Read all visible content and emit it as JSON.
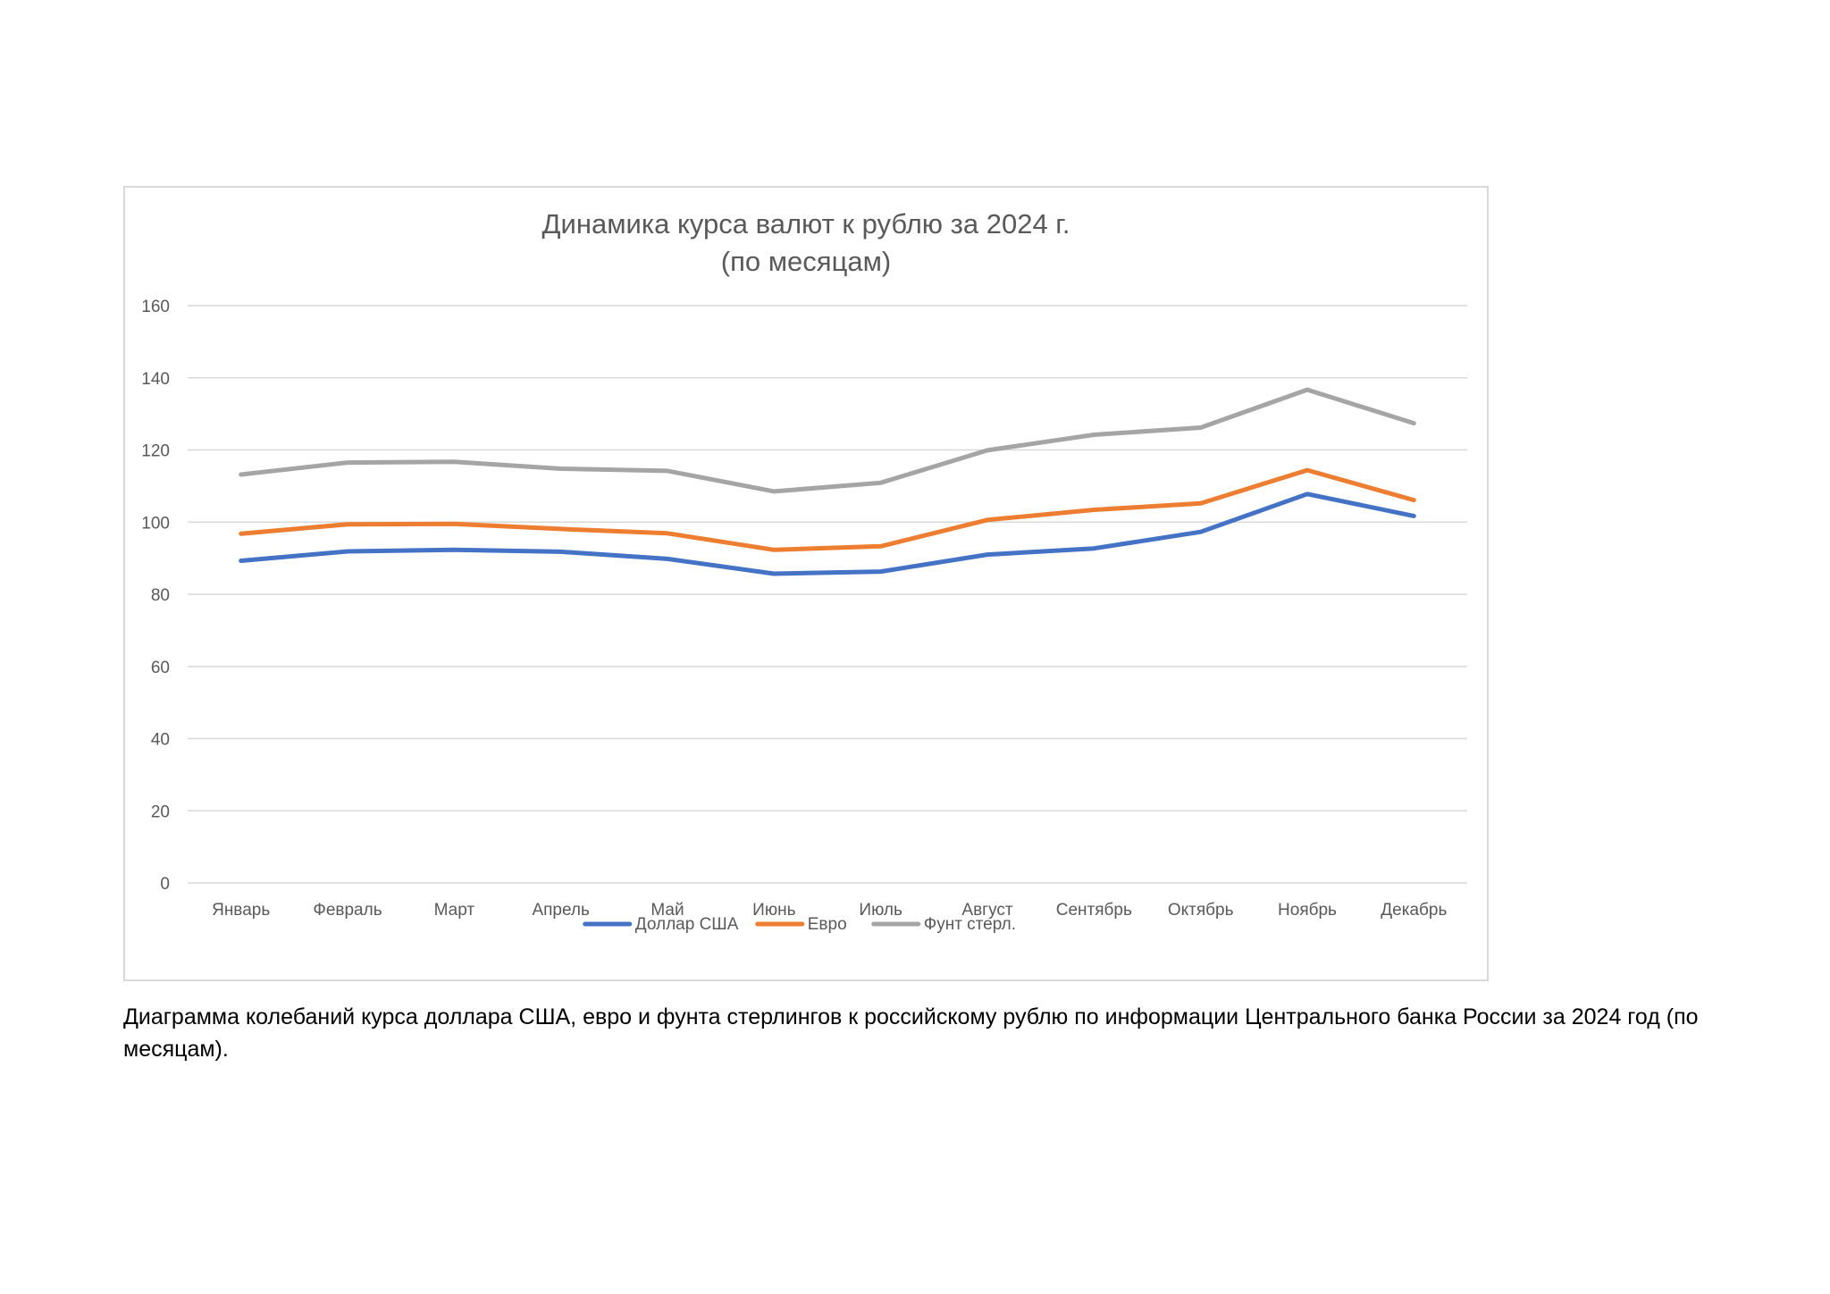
{
  "chart_data": {
    "type": "line",
    "title_lines": [
      "Динамика курса валют к рублю за 2024 г.",
      "(по месяцам)"
    ],
    "categories": [
      "Январь",
      "Февраль",
      "Март",
      "Апрель",
      "Май",
      "Июнь",
      "Июль",
      "Август",
      "Сентябрь",
      "Октябрь",
      "Ноябрь",
      "Декабрь"
    ],
    "ylim": [
      0,
      160
    ],
    "yticks": [
      "0",
      "20",
      "40",
      "60",
      "80",
      "100",
      "120",
      "140",
      "160"
    ],
    "grid": true,
    "legend_position": "bottom",
    "series": [
      {
        "name": "Доллар США",
        "color": "#4472c4",
        "values": [
          89.3,
          91.9,
          92.3,
          91.8,
          89.8,
          85.7,
          86.3,
          91.0,
          92.7,
          97.3,
          107.8,
          101.7
        ]
      },
      {
        "name": "Евро",
        "color": "#ed7d31",
        "values": [
          96.8,
          99.4,
          99.5,
          98.1,
          96.9,
          92.3,
          93.3,
          100.6,
          103.4,
          105.2,
          114.4,
          106.1
        ]
      },
      {
        "name": "Фунт стерл.",
        "color": "#a5a5a5",
        "values": [
          113.2,
          116.5,
          116.7,
          114.8,
          114.2,
          108.5,
          110.9,
          119.9,
          124.2,
          126.2,
          136.7,
          127.4
        ]
      }
    ]
  },
  "caption": "Диаграмма колебаний курса доллара США, евро и фунта стерлингов к российскому рублю по информации Центрального банка России за 2024 год (по месяцам)."
}
